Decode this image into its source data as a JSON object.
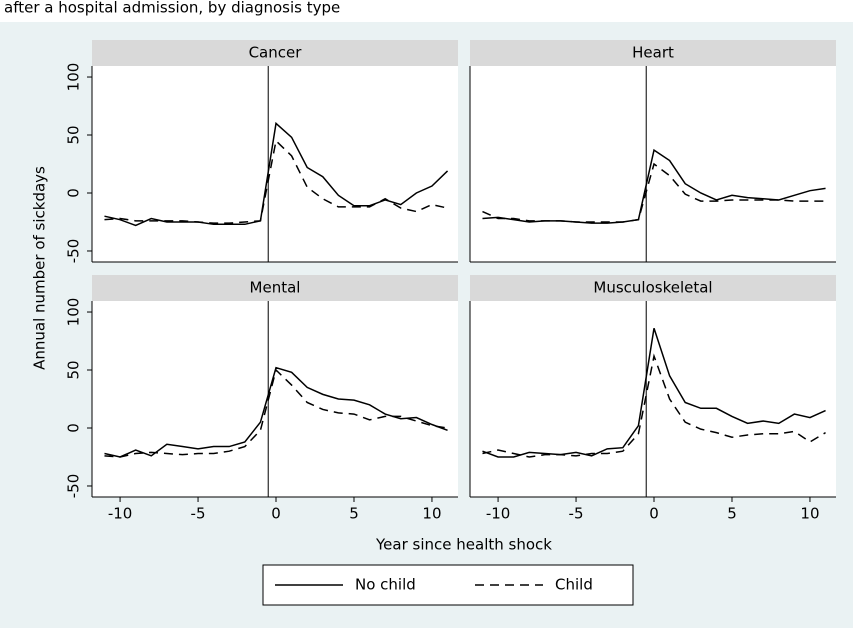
{
  "title": "after a hospital admission, by diagnosis type",
  "xlabel": "Year since health shock",
  "ylabel": "Annual number of sickdays",
  "chart_data": [
    {
      "type": "line",
      "title": "Cancer",
      "vline": -0.5,
      "x": [
        -11,
        -10,
        -9,
        -8,
        -7,
        -6,
        -5,
        -4,
        -3,
        -2,
        -1,
        0,
        1,
        2,
        3,
        4,
        5,
        6,
        7,
        8,
        9,
        10,
        11
      ],
      "xlim": [
        -11.8,
        11.67
      ],
      "ylim": [
        -59.5,
        109.5
      ],
      "yticks": [
        -50,
        0,
        50,
        100
      ],
      "series": [
        {
          "name": "No child",
          "color": "#000000",
          "dash": false,
          "values": [
            -20,
            -23,
            -28,
            -22,
            -25,
            -25,
            -25,
            -27,
            -27,
            -27,
            -24,
            60,
            48,
            22,
            14,
            -2,
            -11,
            -11,
            -6,
            -10,
            0,
            6,
            19
          ]
        },
        {
          "name": "Child",
          "color": "#000000",
          "dash": true,
          "values": [
            -23,
            -22,
            -24,
            -24,
            -24,
            -24,
            -25,
            -26,
            -26,
            -25,
            -24,
            45,
            32,
            5,
            -5,
            -12,
            -12,
            -12,
            -5,
            -13,
            -16,
            -10,
            -13
          ]
        }
      ]
    },
    {
      "type": "line",
      "title": "Heart",
      "vline": -0.5,
      "x": [
        -11,
        -10,
        -9,
        -8,
        -7,
        -6,
        -5,
        -4,
        -3,
        -2,
        -1,
        0,
        1,
        2,
        3,
        4,
        5,
        6,
        7,
        8,
        9,
        10,
        11
      ],
      "xlim": [
        -11.8,
        11.67
      ],
      "ylim": [
        -59.5,
        109.5
      ],
      "series": [
        {
          "color": "#000000",
          "dash": false,
          "values": [
            -22,
            -21,
            -23,
            -25,
            -24,
            -24,
            -25,
            -26,
            -26,
            -25,
            -23,
            37,
            28,
            8,
            0,
            -6,
            -2,
            -4,
            -5,
            -6,
            -2,
            2,
            4
          ]
        },
        {
          "color": "#000000",
          "dash": true,
          "values": [
            -16,
            -22,
            -22,
            -24,
            -24,
            -24,
            -25,
            -25,
            -25,
            -25,
            -23,
            25,
            15,
            -1,
            -7,
            -7,
            -6,
            -6,
            -6,
            -6,
            -7,
            -7,
            -7
          ]
        }
      ]
    },
    {
      "type": "line",
      "title": "Mental",
      "vline": -0.5,
      "x": [
        -11,
        -10,
        -9,
        -8,
        -7,
        -6,
        -5,
        -4,
        -3,
        -2,
        -1,
        0,
        1,
        2,
        3,
        4,
        5,
        6,
        7,
        8,
        9,
        10,
        11
      ],
      "xlim": [
        -11.8,
        11.67
      ],
      "ylim": [
        -59.5,
        109.5
      ],
      "yticks": [
        -50,
        0,
        50,
        100
      ],
      "xticks": [
        -10,
        -5,
        0,
        5,
        10
      ],
      "series": [
        {
          "color": "#000000",
          "dash": false,
          "values": [
            -22,
            -25,
            -19,
            -24,
            -14,
            -16,
            -18,
            -16,
            -16,
            -12,
            5,
            52,
            48,
            35,
            29,
            25,
            24,
            20,
            12,
            8,
            9,
            3,
            -2
          ]
        },
        {
          "color": "#000000",
          "dash": true,
          "values": [
            -24,
            -25,
            -22,
            -21,
            -22,
            -23,
            -22,
            -22,
            -20,
            -16,
            -2,
            50,
            37,
            22,
            16,
            13,
            12,
            7,
            10,
            10,
            6,
            2,
            0
          ]
        }
      ]
    },
    {
      "type": "line",
      "title": "Musculoskeletal",
      "vline": -0.5,
      "x": [
        -11,
        -10,
        -9,
        -8,
        -7,
        -6,
        -5,
        -4,
        -3,
        -2,
        -1,
        0,
        1,
        2,
        3,
        4,
        5,
        6,
        7,
        8,
        9,
        10,
        11
      ],
      "xlim": [
        -11.8,
        11.67
      ],
      "ylim": [
        -59.5,
        109.5
      ],
      "xticks": [
        -10,
        -5,
        0,
        5,
        10
      ],
      "series": [
        {
          "color": "#000000",
          "dash": false,
          "values": [
            -20,
            -25,
            -25,
            -21,
            -22,
            -23,
            -21,
            -24,
            -18,
            -17,
            2,
            86,
            45,
            22,
            17,
            17,
            10,
            4,
            6,
            4,
            12,
            9,
            15
          ]
        },
        {
          "color": "#000000",
          "dash": true,
          "values": [
            -22,
            -19,
            -22,
            -25,
            -23,
            -23,
            -24,
            -22,
            -22,
            -20,
            -5,
            62,
            25,
            5,
            -1,
            -4,
            -8,
            -6,
            -5,
            -5,
            -3,
            -12,
            -4
          ]
        }
      ]
    }
  ]
}
